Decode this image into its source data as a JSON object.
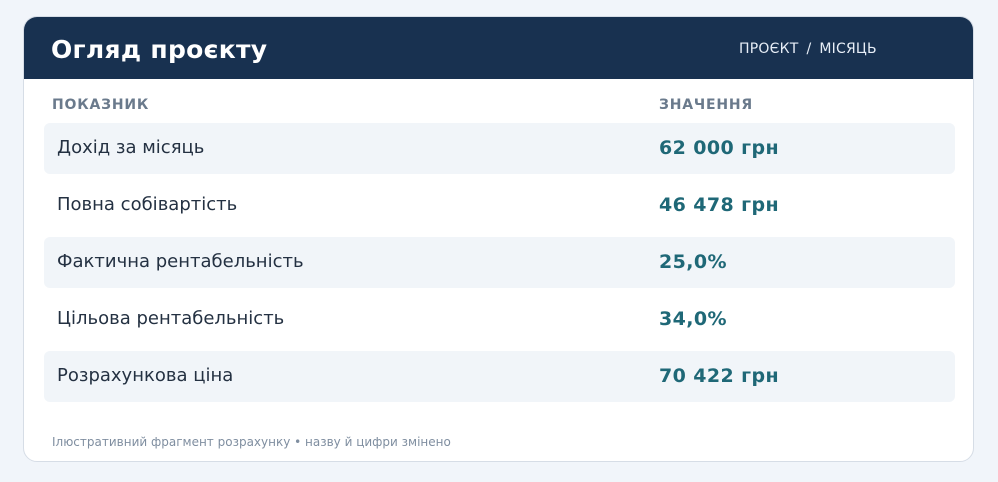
{
  "header": {
    "title": "Огляд проєкту",
    "breadcrumb": [
      "ПРОЄКТ",
      "МІСЯЦЬ"
    ],
    "breadcrumb_sep": "/"
  },
  "table": {
    "columns": [
      "ПОКАЗНИК",
      "ЗНАЧЕННЯ"
    ],
    "rows": [
      {
        "label": "Дохід за місяць",
        "value": "62 000 грн"
      },
      {
        "label": "Повна собівартість",
        "value": "46 478 грн"
      },
      {
        "label": "Фактична рентабельність",
        "value": "25,0%"
      },
      {
        "label": "Цільова рентабельність",
        "value": "34,0%"
      },
      {
        "label": "Розрахункова ціна",
        "value": "70 422 грн"
      }
    ]
  },
  "footer": {
    "note": "Ілюстративний фрагмент розрахунку • назву й цифри змінено"
  },
  "colors": {
    "header_bg": "#183150",
    "value_text": "#1f6877",
    "row_shade": "#f1f5f9"
  }
}
